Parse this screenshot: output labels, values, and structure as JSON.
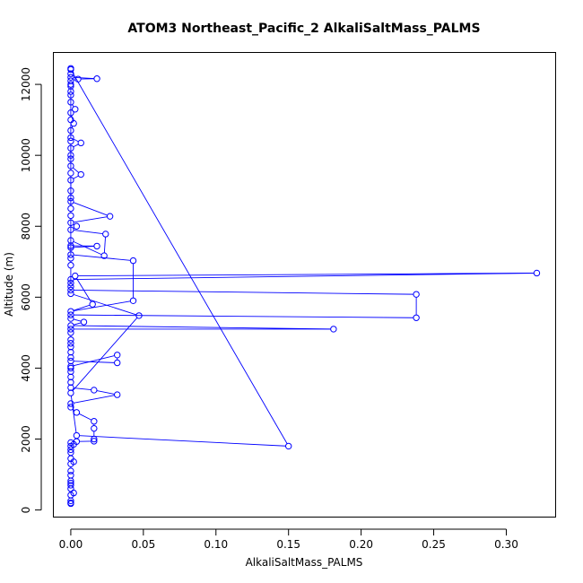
{
  "chart_data": {
    "type": "line",
    "title": "ATOM3 Northeast_Pacific_2 AlkaliSaltMass_PALMS",
    "xlabel": "AlkaliSaltMass_PALMS",
    "ylabel": "Altitude (m)",
    "xlim": [
      -0.012,
      0.334
    ],
    "ylim": [
      -200,
      12900
    ],
    "x_ticks": [
      0,
      0.05,
      0.1,
      0.15,
      0.2,
      0.25,
      0.3
    ],
    "x_tick_labels": [
      "0.00",
      "0.05",
      "0.10",
      "0.15",
      "0.20",
      "0.25",
      "0.30"
    ],
    "y_ticks": [
      0,
      2000,
      4000,
      6000,
      8000,
      10000,
      12000
    ],
    "y_tick_labels": [
      "0",
      "2000",
      "4000",
      "6000",
      "8000",
      "10000",
      "12000"
    ],
    "grid": false,
    "legend": "none",
    "series_color": "#0000ff",
    "points": [
      [
        0.0,
        180
      ],
      [
        0.0,
        200
      ],
      [
        0.0,
        260
      ],
      [
        0.0,
        420
      ],
      [
        0.002,
        480
      ],
      [
        0.0,
        600
      ],
      [
        0.0,
        700
      ],
      [
        0.0,
        760
      ],
      [
        0.0,
        820
      ],
      [
        0.0,
        980
      ],
      [
        0.0,
        1100
      ],
      [
        0.0,
        1300
      ],
      [
        0.002,
        1360
      ],
      [
        0.0,
        1450
      ],
      [
        0.0,
        1620
      ],
      [
        0.0,
        1700
      ],
      [
        0.0,
        1800
      ],
      [
        0.002,
        1850
      ],
      [
        0.0,
        1900
      ],
      [
        0.004,
        1930
      ],
      [
        0.016,
        1940
      ],
      [
        0.016,
        2000
      ],
      [
        0.016,
        2300
      ],
      [
        0.016,
        2500
      ],
      [
        0.004,
        2750
      ],
      [
        0.0,
        2900
      ],
      [
        0.0,
        3000
      ],
      [
        0.032,
        3250
      ],
      [
        0.016,
        3380
      ],
      [
        0.0,
        3450
      ],
      [
        0.0,
        3600
      ],
      [
        0.0,
        3750
      ],
      [
        0.0,
        3900
      ],
      [
        0.0,
        4000
      ],
      [
        0.0,
        4050
      ],
      [
        0.032,
        4370
      ],
      [
        0.032,
        4150
      ],
      [
        0.0,
        4200
      ],
      [
        0.0,
        4300
      ],
      [
        0.0,
        4450
      ],
      [
        0.0,
        4600
      ],
      [
        0.0,
        4700
      ],
      [
        0.0,
        4800
      ],
      [
        0.0,
        5000
      ],
      [
        0.0,
        5100
      ],
      [
        0.181,
        5100
      ],
      [
        0.0,
        5200
      ],
      [
        0.009,
        5300
      ],
      [
        0.0,
        5400
      ],
      [
        0.0,
        5500
      ],
      [
        0.238,
        5420
      ],
      [
        0.238,
        6080
      ],
      [
        0.0,
        6200
      ],
      [
        0.0,
        6400
      ],
      [
        0.0,
        6500
      ],
      [
        0.321,
        6680
      ],
      [
        0.003,
        6600
      ],
      [
        0.015,
        5800
      ],
      [
        0.0,
        5600
      ],
      [
        0.043,
        5900
      ],
      [
        0.043,
        7030
      ],
      [
        0.0,
        7200
      ],
      [
        0.0,
        7400
      ],
      [
        0.018,
        7440
      ],
      [
        0.0,
        7450
      ],
      [
        0.0,
        7600
      ],
      [
        0.023,
        7170
      ],
      [
        0.024,
        7780
      ],
      [
        0.0,
        7900
      ],
      [
        0.004,
        8000
      ],
      [
        0.0,
        8100
      ],
      [
        0.027,
        8280
      ],
      [
        0.0,
        8700
      ],
      [
        0.0,
        8800
      ],
      [
        0.0,
        9000
      ],
      [
        0.0,
        9300
      ],
      [
        0.007,
        9460
      ],
      [
        0.0,
        9700
      ],
      [
        0.0,
        9900
      ],
      [
        0.0,
        10000
      ],
      [
        0.0,
        10200
      ],
      [
        0.007,
        10350
      ],
      [
        0.0,
        10500
      ],
      [
        0.0,
        10700
      ],
      [
        0.002,
        10900
      ],
      [
        0.0,
        11200
      ],
      [
        0.003,
        11300
      ],
      [
        0.0,
        11500
      ],
      [
        0.0,
        11700
      ],
      [
        0.0,
        11950
      ],
      [
        0.0,
        12100
      ],
      [
        0.005,
        12150
      ],
      [
        0.018,
        12160
      ],
      [
        0.0,
        12200
      ],
      [
        0.0,
        12300
      ],
      [
        0.0,
        12450
      ],
      [
        0.0,
        12420
      ],
      [
        0.15,
        1800
      ],
      [
        0.004,
        2100
      ],
      [
        0.0,
        3300
      ],
      [
        0.047,
        5480
      ],
      [
        0.0,
        6100
      ],
      [
        0.0,
        6300
      ],
      [
        0.0,
        6900
      ],
      [
        0.0,
        7100
      ],
      [
        0.0,
        8300
      ],
      [
        0.0,
        8500
      ],
      [
        0.0,
        9500
      ],
      [
        0.0,
        10400
      ],
      [
        0.0,
        11000
      ],
      [
        0.0,
        11800
      ],
      [
        0.0,
        12000
      ]
    ]
  }
}
